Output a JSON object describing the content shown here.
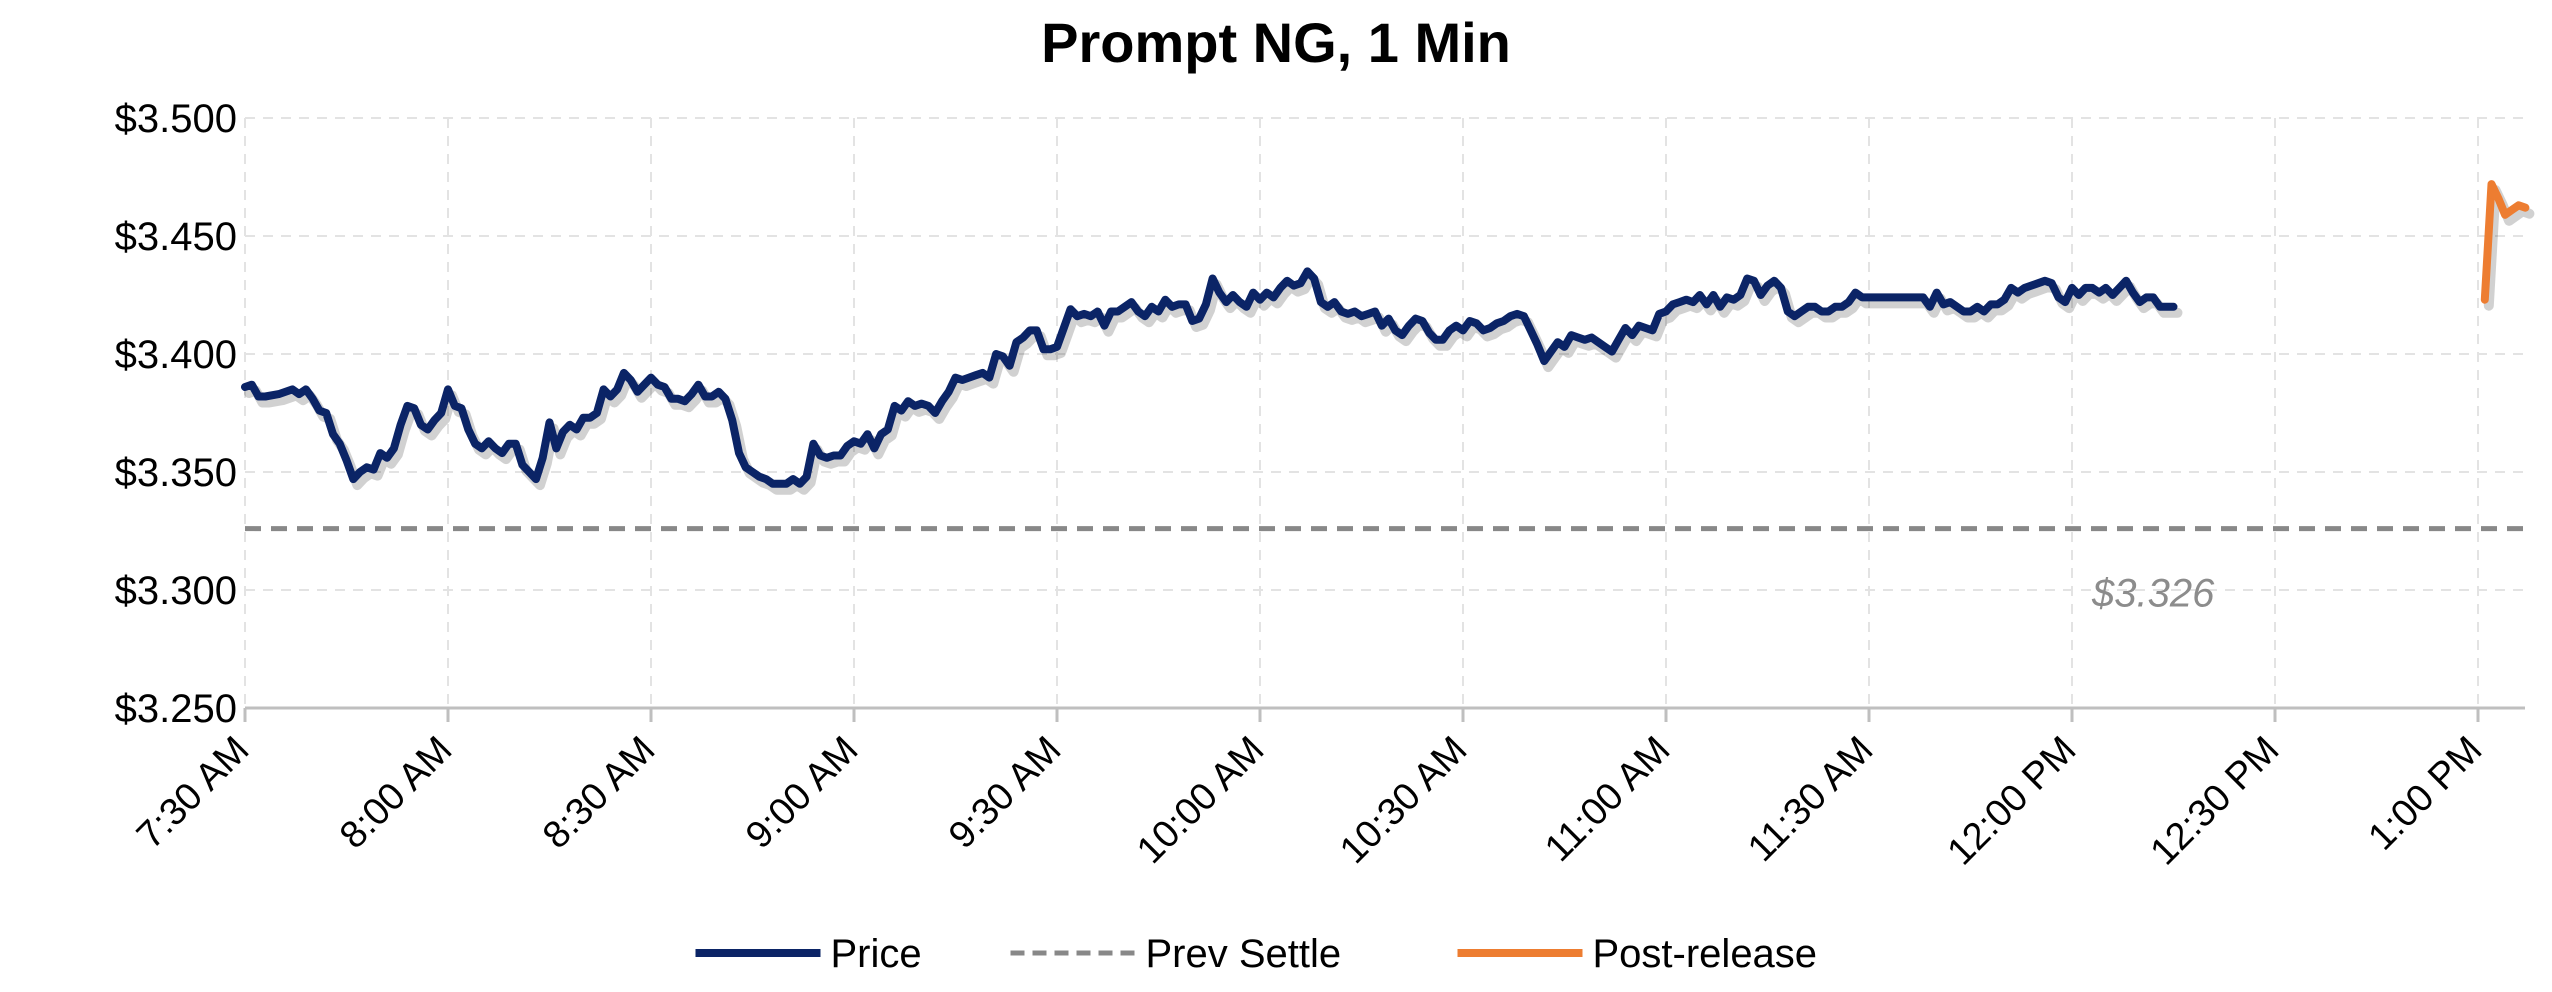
{
  "chart_data": {
    "type": "line",
    "title": "Prompt NG, 1 Min",
    "xlabel": "",
    "ylabel": "",
    "ylim": [
      3.25,
      3.5
    ],
    "yticks": [
      {
        "value": 3.25,
        "label": "$3.250"
      },
      {
        "value": 3.3,
        "label": "$3.300"
      },
      {
        "value": 3.35,
        "label": "$3.350"
      },
      {
        "value": 3.4,
        "label": "$3.400"
      },
      {
        "value": 3.45,
        "label": "$3.450"
      },
      {
        "value": 3.5,
        "label": "$3.500"
      }
    ],
    "xlim": [
      0,
      337
    ],
    "xticks": [
      {
        "value": 0,
        "label": "7:30 AM"
      },
      {
        "value": 30,
        "label": "8:00 AM"
      },
      {
        "value": 60,
        "label": "8:30 AM"
      },
      {
        "value": 90,
        "label": "9:00 AM"
      },
      {
        "value": 120,
        "label": "9:30 AM"
      },
      {
        "value": 150,
        "label": "10:00 AM"
      },
      {
        "value": 180,
        "label": "10:30 AM"
      },
      {
        "value": 210,
        "label": "11:00 AM"
      },
      {
        "value": 240,
        "label": "11:30 AM"
      },
      {
        "value": 270,
        "label": "12:00 PM"
      },
      {
        "value": 300,
        "label": "12:30 PM"
      },
      {
        "value": 330,
        "label": "1:00 PM"
      }
    ],
    "grid": true,
    "legend_position": "bottom",
    "series": [
      {
        "name": "Price",
        "color": "#0b2466",
        "points": [
          [
            0,
            3.386
          ],
          [
            1,
            3.387
          ],
          [
            2,
            3.382
          ],
          [
            3,
            3.382
          ],
          [
            5,
            3.383
          ],
          [
            7,
            3.385
          ],
          [
            8,
            3.383
          ],
          [
            9,
            3.385
          ],
          [
            10,
            3.381
          ],
          [
            11,
            3.376
          ],
          [
            12,
            3.375
          ],
          [
            13,
            3.366
          ],
          [
            14,
            3.362
          ],
          [
            15,
            3.355
          ],
          [
            16,
            3.347
          ],
          [
            17,
            3.35
          ],
          [
            18,
            3.352
          ],
          [
            19,
            3.351
          ],
          [
            20,
            3.358
          ],
          [
            21,
            3.356
          ],
          [
            22,
            3.36
          ],
          [
            23,
            3.37
          ],
          [
            24,
            3.378
          ],
          [
            25,
            3.377
          ],
          [
            26,
            3.37
          ],
          [
            27,
            3.368
          ],
          [
            28,
            3.372
          ],
          [
            29,
            3.375
          ],
          [
            30,
            3.385
          ],
          [
            31,
            3.378
          ],
          [
            32,
            3.377
          ],
          [
            33,
            3.368
          ],
          [
            34,
            3.362
          ],
          [
            35,
            3.36
          ],
          [
            36,
            3.363
          ],
          [
            37,
            3.36
          ],
          [
            38,
            3.358
          ],
          [
            39,
            3.362
          ],
          [
            40,
            3.362
          ],
          [
            41,
            3.353
          ],
          [
            42,
            3.35
          ],
          [
            43,
            3.347
          ],
          [
            44,
            3.356
          ],
          [
            45,
            3.371
          ],
          [
            46,
            3.36
          ],
          [
            47,
            3.367
          ],
          [
            48,
            3.37
          ],
          [
            49,
            3.368
          ],
          [
            50,
            3.373
          ],
          [
            51,
            3.373
          ],
          [
            52,
            3.375
          ],
          [
            53,
            3.385
          ],
          [
            54,
            3.382
          ],
          [
            55,
            3.385
          ],
          [
            56,
            3.392
          ],
          [
            57,
            3.389
          ],
          [
            58,
            3.384
          ],
          [
            59,
            3.387
          ],
          [
            60,
            3.39
          ],
          [
            61,
            3.387
          ],
          [
            62,
            3.386
          ],
          [
            63,
            3.381
          ],
          [
            64,
            3.381
          ],
          [
            65,
            3.38
          ],
          [
            66,
            3.383
          ],
          [
            67,
            3.387
          ],
          [
            68,
            3.382
          ],
          [
            69,
            3.382
          ],
          [
            70,
            3.384
          ],
          [
            71,
            3.381
          ],
          [
            72,
            3.372
          ],
          [
            73,
            3.358
          ],
          [
            74,
            3.352
          ],
          [
            75,
            3.35
          ],
          [
            76,
            3.348
          ],
          [
            77,
            3.347
          ],
          [
            78,
            3.345
          ],
          [
            79,
            3.345
          ],
          [
            80,
            3.345
          ],
          [
            81,
            3.347
          ],
          [
            82,
            3.345
          ],
          [
            83,
            3.348
          ],
          [
            84,
            3.362
          ],
          [
            85,
            3.357
          ],
          [
            86,
            3.356
          ],
          [
            87,
            3.357
          ],
          [
            88,
            3.357
          ],
          [
            89,
            3.361
          ],
          [
            90,
            3.363
          ],
          [
            91,
            3.362
          ],
          [
            92,
            3.366
          ],
          [
            93,
            3.36
          ],
          [
            94,
            3.366
          ],
          [
            95,
            3.368
          ],
          [
            96,
            3.378
          ],
          [
            97,
            3.376
          ],
          [
            98,
            3.38
          ],
          [
            99,
            3.378
          ],
          [
            100,
            3.379
          ],
          [
            101,
            3.378
          ],
          [
            102,
            3.375
          ],
          [
            103,
            3.38
          ],
          [
            104,
            3.384
          ],
          [
            105,
            3.39
          ],
          [
            106,
            3.389
          ],
          [
            107,
            3.39
          ],
          [
            108,
            3.391
          ],
          [
            109,
            3.392
          ],
          [
            110,
            3.39
          ],
          [
            111,
            3.4
          ],
          [
            112,
            3.399
          ],
          [
            113,
            3.395
          ],
          [
            114,
            3.405
          ],
          [
            115,
            3.407
          ],
          [
            116,
            3.41
          ],
          [
            117,
            3.41
          ],
          [
            118,
            3.402
          ],
          [
            119,
            3.402
          ],
          [
            120,
            3.403
          ],
          [
            121,
            3.411
          ],
          [
            122,
            3.419
          ],
          [
            123,
            3.416
          ],
          [
            124,
            3.417
          ],
          [
            125,
            3.416
          ],
          [
            126,
            3.418
          ],
          [
            127,
            3.412
          ],
          [
            128,
            3.418
          ],
          [
            129,
            3.418
          ],
          [
            130,
            3.42
          ],
          [
            131,
            3.422
          ],
          [
            132,
            3.418
          ],
          [
            133,
            3.416
          ],
          [
            134,
            3.42
          ],
          [
            135,
            3.418
          ],
          [
            136,
            3.423
          ],
          [
            137,
            3.42
          ],
          [
            138,
            3.421
          ],
          [
            139,
            3.421
          ],
          [
            140,
            3.414
          ],
          [
            141,
            3.415
          ],
          [
            142,
            3.421
          ],
          [
            143,
            3.432
          ],
          [
            144,
            3.426
          ],
          [
            145,
            3.422
          ],
          [
            146,
            3.425
          ],
          [
            147,
            3.422
          ],
          [
            148,
            3.42
          ],
          [
            149,
            3.426
          ],
          [
            150,
            3.423
          ],
          [
            151,
            3.426
          ],
          [
            152,
            3.424
          ],
          [
            153,
            3.428
          ],
          [
            154,
            3.431
          ],
          [
            155,
            3.429
          ],
          [
            156,
            3.43
          ],
          [
            157,
            3.435
          ],
          [
            158,
            3.432
          ],
          [
            159,
            3.422
          ],
          [
            160,
            3.42
          ],
          [
            161,
            3.422
          ],
          [
            162,
            3.418
          ],
          [
            163,
            3.417
          ],
          [
            164,
            3.418
          ],
          [
            165,
            3.416
          ],
          [
            166,
            3.417
          ],
          [
            167,
            3.418
          ],
          [
            168,
            3.412
          ],
          [
            169,
            3.415
          ],
          [
            170,
            3.41
          ],
          [
            171,
            3.408
          ],
          [
            172,
            3.412
          ],
          [
            173,
            3.415
          ],
          [
            174,
            3.414
          ],
          [
            175,
            3.409
          ],
          [
            176,
            3.406
          ],
          [
            177,
            3.406
          ],
          [
            178,
            3.41
          ],
          [
            179,
            3.412
          ],
          [
            180,
            3.41
          ],
          [
            181,
            3.414
          ],
          [
            182,
            3.413
          ],
          [
            183,
            3.41
          ],
          [
            184,
            3.411
          ],
          [
            185,
            3.413
          ],
          [
            186,
            3.414
          ],
          [
            187,
            3.416
          ],
          [
            188,
            3.417
          ],
          [
            189,
            3.416
          ],
          [
            190,
            3.41
          ],
          [
            191,
            3.404
          ],
          [
            192,
            3.397
          ],
          [
            193,
            3.401
          ],
          [
            194,
            3.405
          ],
          [
            195,
            3.403
          ],
          [
            196,
            3.408
          ],
          [
            197,
            3.407
          ],
          [
            198,
            3.406
          ],
          [
            199,
            3.407
          ],
          [
            200,
            3.405
          ],
          [
            201,
            3.403
          ],
          [
            202,
            3.401
          ],
          [
            203,
            3.406
          ],
          [
            204,
            3.411
          ],
          [
            205,
            3.408
          ],
          [
            206,
            3.412
          ],
          [
            207,
            3.411
          ],
          [
            208,
            3.41
          ],
          [
            209,
            3.417
          ],
          [
            210,
            3.418
          ],
          [
            211,
            3.421
          ],
          [
            212,
            3.422
          ],
          [
            213,
            3.423
          ],
          [
            214,
            3.422
          ],
          [
            215,
            3.425
          ],
          [
            216,
            3.421
          ],
          [
            217,
            3.425
          ],
          [
            218,
            3.42
          ],
          [
            219,
            3.424
          ],
          [
            220,
            3.423
          ],
          [
            221,
            3.425
          ],
          [
            222,
            3.432
          ],
          [
            223,
            3.431
          ],
          [
            224,
            3.425
          ],
          [
            225,
            3.429
          ],
          [
            226,
            3.431
          ],
          [
            227,
            3.428
          ],
          [
            228,
            3.418
          ],
          [
            229,
            3.416
          ],
          [
            230,
            3.418
          ],
          [
            231,
            3.42
          ],
          [
            232,
            3.42
          ],
          [
            233,
            3.418
          ],
          [
            234,
            3.418
          ],
          [
            235,
            3.42
          ],
          [
            236,
            3.42
          ],
          [
            237,
            3.422
          ],
          [
            238,
            3.426
          ],
          [
            239,
            3.424
          ],
          [
            240,
            3.424
          ],
          [
            241,
            3.424
          ],
          [
            244,
            3.424
          ],
          [
            246,
            3.424
          ],
          [
            248,
            3.424
          ],
          [
            249,
            3.42
          ],
          [
            250,
            3.426
          ],
          [
            251,
            3.421
          ],
          [
            252,
            3.422
          ],
          [
            253,
            3.42
          ],
          [
            254,
            3.418
          ],
          [
            255,
            3.418
          ],
          [
            256,
            3.42
          ],
          [
            257,
            3.418
          ],
          [
            258,
            3.421
          ],
          [
            259,
            3.421
          ],
          [
            260,
            3.423
          ],
          [
            261,
            3.428
          ],
          [
            262,
            3.426
          ],
          [
            263,
            3.428
          ],
          [
            264,
            3.429
          ],
          [
            265,
            3.43
          ],
          [
            266,
            3.431
          ],
          [
            267,
            3.43
          ],
          [
            268,
            3.424
          ],
          [
            269,
            3.422
          ],
          [
            270,
            3.428
          ],
          [
            271,
            3.425
          ],
          [
            272,
            3.428
          ],
          [
            273,
            3.428
          ],
          [
            274,
            3.426
          ],
          [
            275,
            3.428
          ],
          [
            276,
            3.425
          ],
          [
            277,
            3.428
          ],
          [
            278,
            3.431
          ],
          [
            279,
            3.426
          ],
          [
            280,
            3.422
          ],
          [
            281,
            3.424
          ],
          [
            282,
            3.424
          ],
          [
            283,
            3.42
          ],
          [
            284,
            3.42
          ],
          [
            285,
            3.42
          ]
        ]
      },
      {
        "name": "Prev Settle",
        "color": "#888888",
        "points": [
          [
            0,
            3.326
          ],
          [
            337,
            3.326
          ]
        ]
      },
      {
        "name": "Post-release",
        "color": "#ed7d31",
        "points": [
          [
            331,
            3.423
          ],
          [
            332,
            3.472
          ],
          [
            333,
            3.466
          ],
          [
            334,
            3.459
          ],
          [
            335,
            3.461
          ],
          [
            336,
            3.463
          ],
          [
            337,
            3.462
          ]
        ]
      }
    ],
    "annotations": [
      {
        "text": "$3.326",
        "x": 282,
        "y": 3.293
      }
    ]
  }
}
